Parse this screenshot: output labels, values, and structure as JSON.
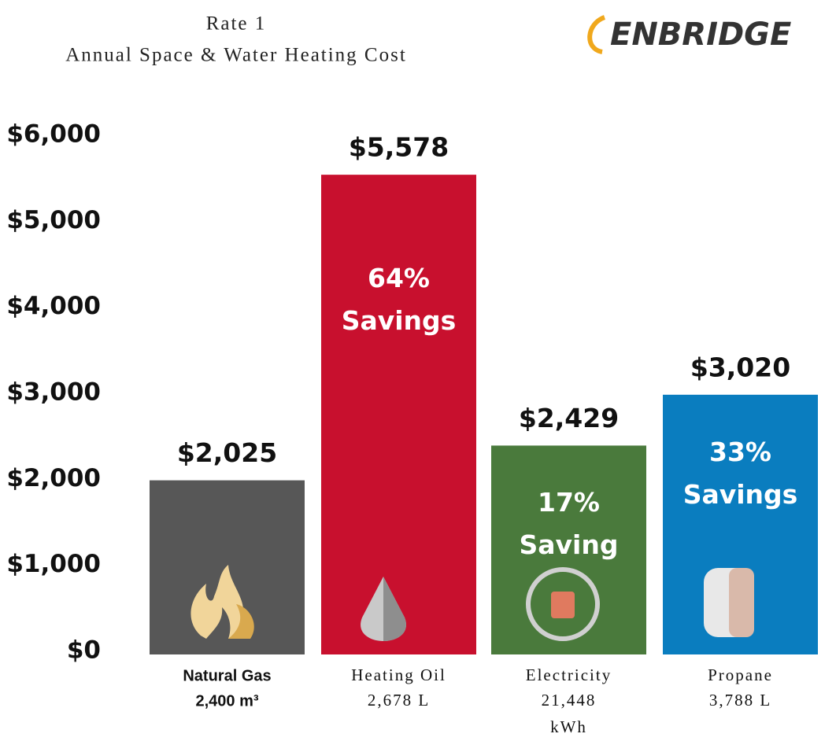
{
  "chart_data": {
    "type": "bar",
    "title": "Rate 1",
    "subtitle": "Annual Space & Water Heating Cost",
    "logo": "ENBRIDGE",
    "categories": [
      "Natural Gas",
      "Heating Oil",
      "Electricity",
      "Propane"
    ],
    "category_units": [
      "2,400 m³",
      "2,678 L",
      "21,448 kWh",
      "3,788 L"
    ],
    "values": [
      2025,
      5578,
      2429,
      3020
    ],
    "value_labels": [
      "$2,025",
      "$5,578",
      "$2,429",
      "$3,020"
    ],
    "savings_labels": [
      null,
      "64% Savings",
      "17% Saving",
      "33% Savings"
    ],
    "colors": [
      "#575757",
      "#c8102e",
      "#4a7a3c",
      "#0a7dbf"
    ],
    "ylim": [
      0,
      6000
    ],
    "yticks": [
      {
        "value": 0,
        "label": "$0"
      },
      {
        "value": 1000,
        "label": "$1,000"
      },
      {
        "value": 2000,
        "label": "$2,000"
      },
      {
        "value": 3000,
        "label": "$3,000"
      },
      {
        "value": 4000,
        "label": "$4,000"
      },
      {
        "value": 5000,
        "label": "$5,000"
      },
      {
        "value": 6000,
        "label": "$6,000"
      }
    ],
    "grid": false
  }
}
